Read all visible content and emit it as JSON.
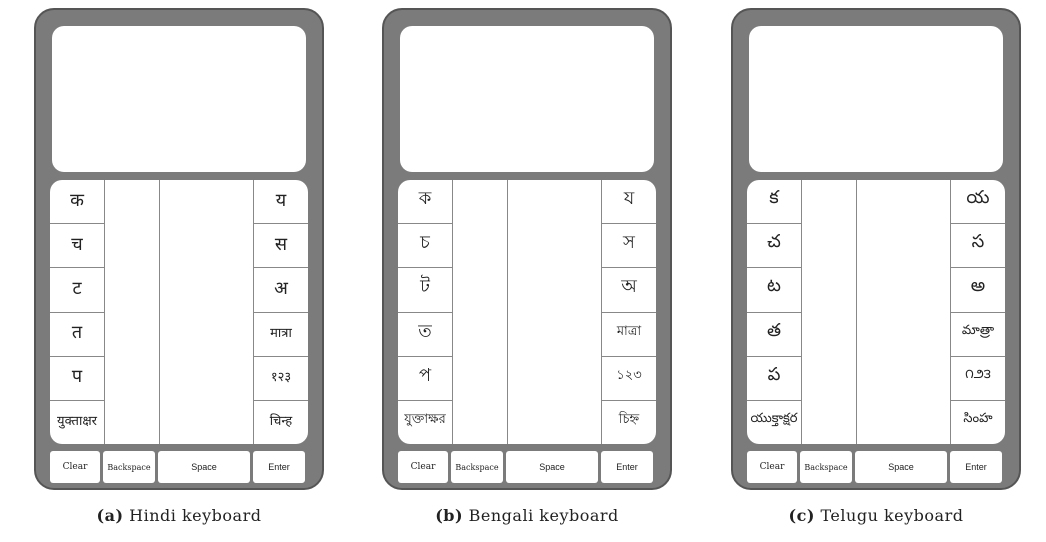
{
  "bottom_keys": {
    "clear": "Clear",
    "backspace": "Backspace",
    "space": "Space",
    "enter": "Enter"
  },
  "panels": [
    {
      "tag": "(a)",
      "caption": "Hindi keyboard",
      "left_keys": [
        "क",
        "च",
        "ट",
        "त",
        "प",
        "युक्ताक्षर"
      ],
      "right_keys": [
        "य",
        "स",
        "अ",
        "मात्रा",
        "१२३",
        "चिन्ह"
      ]
    },
    {
      "tag": "(b)",
      "caption": "Bengali keyboard",
      "left_keys": [
        "ক",
        "চ",
        "ট",
        "ত",
        "প",
        "যুক্তাক্ষর"
      ],
      "right_keys": [
        "য",
        "স",
        "অ",
        "মাত্রা",
        "১২৩",
        "চিহ্ন"
      ]
    },
    {
      "tag": "(c)",
      "caption": "Telugu keyboard",
      "left_keys": [
        "క",
        "చ",
        "ట",
        "త",
        "ప",
        "యుక్తాక్షర"
      ],
      "right_keys": [
        "య",
        "స",
        "అ",
        "మాత్రా",
        "౧౨౩",
        "సింహ"
      ]
    }
  ]
}
